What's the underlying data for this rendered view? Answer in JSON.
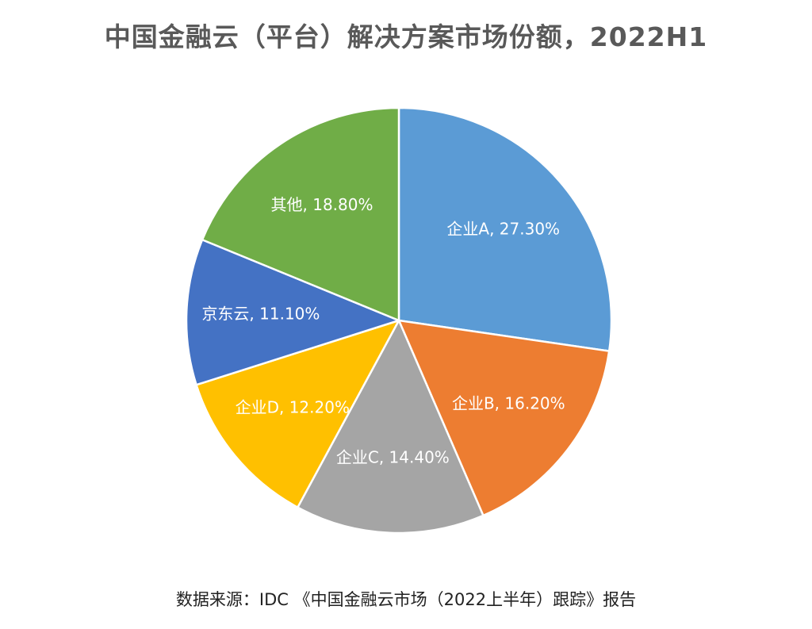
{
  "chart_data": {
    "type": "pie",
    "title": "中国金融云（平台）解决方案市场份额，2022H1",
    "slices": [
      {
        "name": "企业A",
        "value": 27.3,
        "label": "企业A, 27.30%",
        "color": "#5B9BD5"
      },
      {
        "name": "企业B",
        "value": 16.2,
        "label": "企业B, 16.20%",
        "color": "#ED7D31"
      },
      {
        "name": "企业C",
        "value": 14.4,
        "label": "企业C, 14.40%",
        "color": "#A5A5A5"
      },
      {
        "name": "企业D",
        "value": 12.2,
        "label": "企业D, 12.20%",
        "color": "#FFC000"
      },
      {
        "name": "京东云",
        "value": 11.1,
        "label": "京东云, 11.10%",
        "color": "#4472C4"
      },
      {
        "name": "其他",
        "value": 18.8,
        "label": "其他, 18.80%",
        "color": "#70AD47"
      }
    ],
    "legend": "none"
  },
  "source": "数据来源：IDC 《中国金融云市场（2022上半年）跟踪》报告"
}
